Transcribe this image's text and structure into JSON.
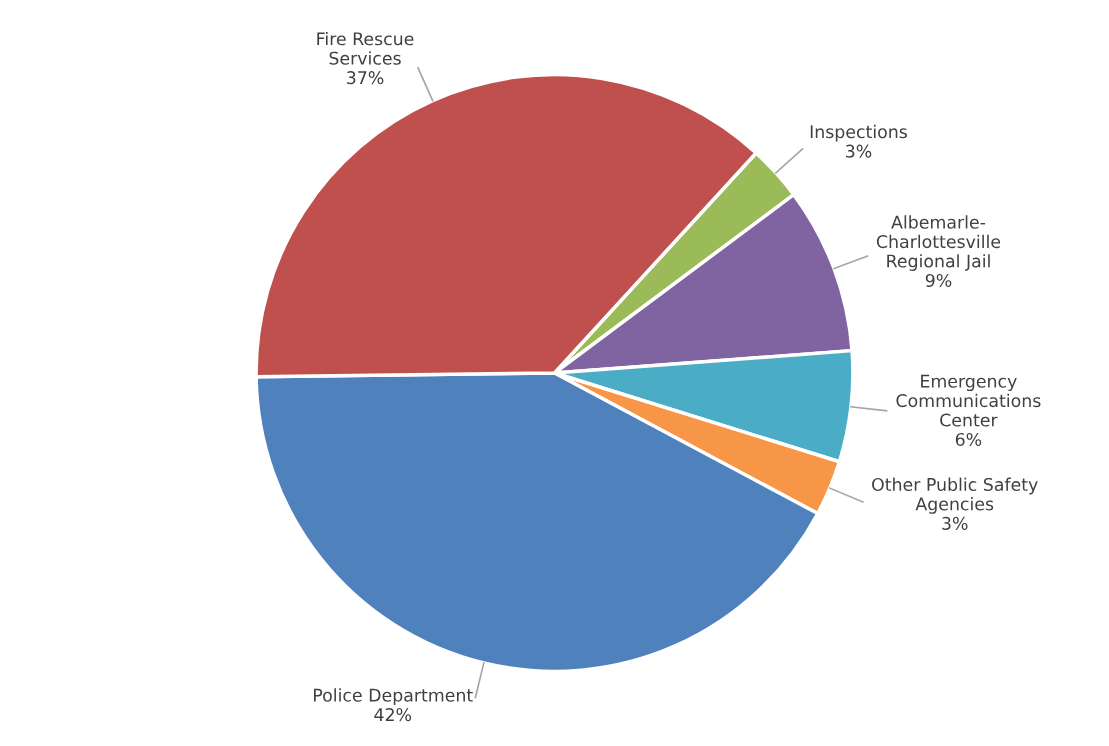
{
  "chart_data": {
    "type": "pie",
    "categories": [
      "Inspections",
      "Albemarle-\nCharlottesville\nRegional Jail",
      "Emergency\nCommunications\nCenter",
      "Other Public Safety\nAgencies",
      "Police Department",
      "Fire Rescue\nServices"
    ],
    "values": [
      3,
      9,
      6,
      3,
      42,
      37
    ],
    "colors": [
      "#9bbb59",
      "#8064a2",
      "#4bacc6",
      "#f79646",
      "#4f81bd",
      "#c0504d"
    ],
    "value_labels": [
      "3%",
      "9%",
      "6%",
      "3%",
      "42%",
      "37%"
    ]
  }
}
